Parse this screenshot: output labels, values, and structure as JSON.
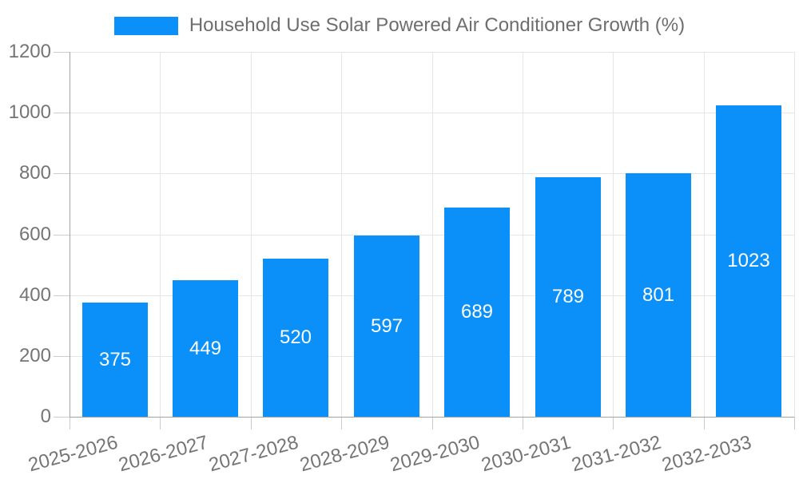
{
  "legend": {
    "label": "Household Use Solar Powered Air Conditioner Growth (%)"
  },
  "chart_data": {
    "type": "bar",
    "title": "Household Use Solar Powered Air Conditioner Growth (%)",
    "categories": [
      "2025-2026",
      "2026-2027",
      "2027-2028",
      "2028-2029",
      "2029-2030",
      "2030-2031",
      "2031-2032",
      "2032-2033"
    ],
    "values": [
      375,
      449,
      520,
      597,
      689,
      789,
      801,
      1023
    ],
    "xlabel": "",
    "ylabel": "",
    "ylim": [
      0,
      1200
    ],
    "ytick_interval": 200,
    "ytick_labels": [
      "0",
      "200",
      "400",
      "600",
      "800",
      "1000",
      "1200"
    ],
    "grid": true,
    "legend_position": "top-center",
    "value_label_position": "inside-center",
    "x_label_rotation_deg": -15,
    "colors": {
      "bar": "#0a90f8",
      "value_label": "#ffffff",
      "legend_text": "#6e6e6e",
      "tick_text": "#757575",
      "grid_line": "#e6e6e6",
      "axis_line": "#a3a3a3",
      "tick_mark": "#cccccc",
      "background": "#ffffff"
    }
  }
}
